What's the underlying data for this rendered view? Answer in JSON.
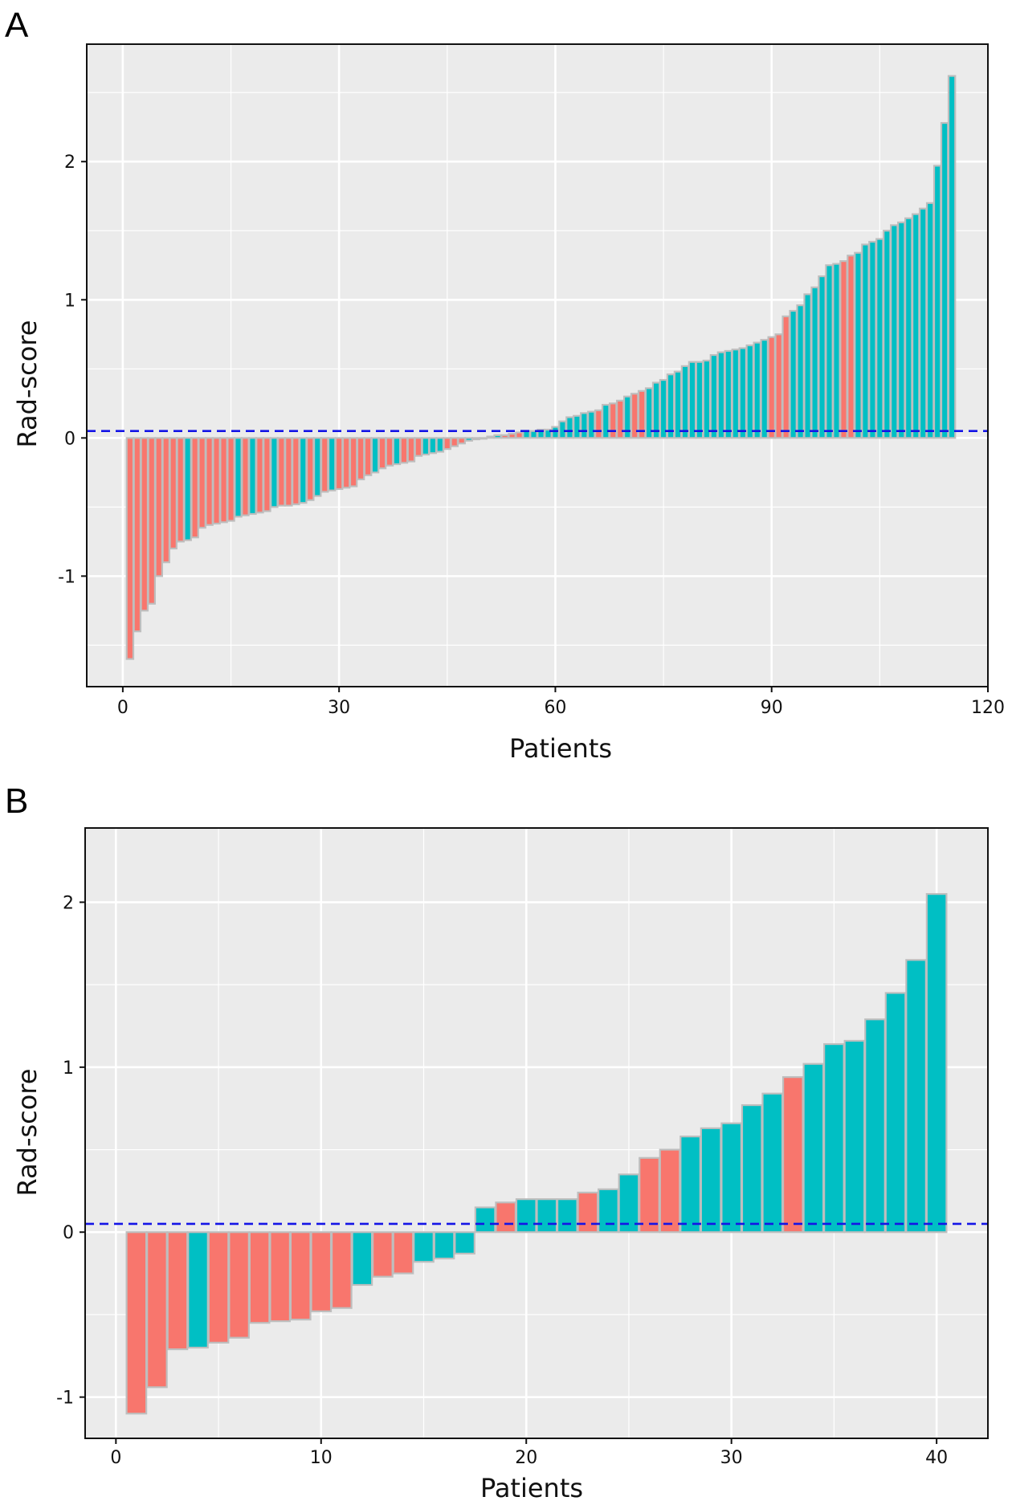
{
  "colors": {
    "panel_bg": "#EBEBEB",
    "grid": "#FFFFFF",
    "red": "#F8766D",
    "teal": "#00BFC4",
    "bar_border": "#BEBEBE",
    "cutoff_line": "#1414E6"
  },
  "chart_data": [
    {
      "type": "bar",
      "panel_label": "A",
      "xlabel": "Patients",
      "ylabel": "Rad-score",
      "x_ticks": [
        "0",
        "30",
        "60",
        "90",
        "120"
      ],
      "y_ticks": [
        "-1",
        "0",
        "1",
        "2"
      ],
      "xlim": [
        -5,
        120
      ],
      "ylim": [
        -1.8,
        2.85
      ],
      "cutoff": 0.05,
      "grid": true,
      "legend": "none",
      "values": [
        -1.6,
        -1.4,
        -1.25,
        -1.2,
        -1.0,
        -0.9,
        -0.8,
        -0.75,
        -0.74,
        -0.72,
        -0.65,
        -0.63,
        -0.62,
        -0.61,
        -0.6,
        -0.57,
        -0.56,
        -0.55,
        -0.54,
        -0.53,
        -0.5,
        -0.49,
        -0.49,
        -0.48,
        -0.47,
        -0.45,
        -0.42,
        -0.39,
        -0.38,
        -0.37,
        -0.36,
        -0.35,
        -0.3,
        -0.27,
        -0.25,
        -0.22,
        -0.2,
        -0.19,
        -0.18,
        -0.17,
        -0.13,
        -0.12,
        -0.11,
        -0.1,
        -0.08,
        -0.06,
        -0.04,
        -0.02,
        -0.01,
        0.0,
        0.01,
        0.02,
        0.02,
        0.03,
        0.04,
        0.05,
        0.05,
        0.06,
        0.06,
        0.08,
        0.12,
        0.15,
        0.16,
        0.18,
        0.19,
        0.2,
        0.24,
        0.25,
        0.27,
        0.3,
        0.32,
        0.34,
        0.36,
        0.4,
        0.42,
        0.46,
        0.48,
        0.52,
        0.55,
        0.55,
        0.56,
        0.6,
        0.62,
        0.63,
        0.64,
        0.65,
        0.67,
        0.69,
        0.71,
        0.73,
        0.75,
        0.88,
        0.92,
        0.96,
        1.04,
        1.09,
        1.17,
        1.25,
        1.26,
        1.28,
        1.32,
        1.34,
        1.4,
        1.42,
        1.44,
        1.5,
        1.54,
        1.56,
        1.59,
        1.62,
        1.66,
        1.7,
        1.97,
        2.28,
        2.62
      ],
      "groups": [
        "r",
        "r",
        "r",
        "r",
        "r",
        "r",
        "r",
        "r",
        "t",
        "r",
        "r",
        "r",
        "r",
        "r",
        "r",
        "t",
        "r",
        "t",
        "r",
        "r",
        "t",
        "r",
        "r",
        "r",
        "t",
        "r",
        "t",
        "r",
        "t",
        "r",
        "r",
        "r",
        "r",
        "r",
        "t",
        "r",
        "r",
        "t",
        "r",
        "r",
        "r",
        "t",
        "t",
        "t",
        "r",
        "r",
        "r",
        "t",
        "t",
        "t",
        "t",
        "t",
        "r",
        "r",
        "r",
        "t",
        "t",
        "t",
        "t",
        "t",
        "t",
        "t",
        "t",
        "t",
        "t",
        "r",
        "t",
        "r",
        "r",
        "t",
        "r",
        "r",
        "t",
        "t",
        "t",
        "t",
        "t",
        "t",
        "t",
        "t",
        "t",
        "t",
        "t",
        "t",
        "t",
        "t",
        "t",
        "t",
        "t",
        "r",
        "r",
        "r",
        "t",
        "t",
        "t",
        "t",
        "t",
        "t",
        "t",
        "r",
        "r",
        "t",
        "t",
        "t",
        "t",
        "t",
        "t",
        "t",
        "t",
        "t",
        "t",
        "t",
        "t",
        "t",
        "t"
      ]
    },
    {
      "type": "bar",
      "panel_label": "B",
      "xlabel": "Patients",
      "ylabel": "Rad-score",
      "x_ticks": [
        "0",
        "10",
        "20",
        "30",
        "40"
      ],
      "y_ticks": [
        "-1",
        "0",
        "1",
        "2"
      ],
      "xlim": [
        -1.5,
        42.5
      ],
      "ylim": [
        -1.25,
        2.45
      ],
      "cutoff": 0.05,
      "grid": true,
      "legend": "none",
      "values": [
        -1.1,
        -0.94,
        -0.71,
        -0.7,
        -0.67,
        -0.64,
        -0.55,
        -0.54,
        -0.53,
        -0.48,
        -0.46,
        -0.32,
        -0.27,
        -0.25,
        -0.18,
        -0.16,
        -0.13,
        0.15,
        0.18,
        0.2,
        0.2,
        0.2,
        0.24,
        0.26,
        0.35,
        0.45,
        0.5,
        0.58,
        0.63,
        0.66,
        0.77,
        0.84,
        0.94,
        1.02,
        1.14,
        1.16,
        1.29,
        1.45,
        1.65,
        2.05
      ],
      "groups": [
        "r",
        "r",
        "r",
        "t",
        "r",
        "r",
        "r",
        "r",
        "r",
        "r",
        "r",
        "t",
        "r",
        "r",
        "t",
        "t",
        "t",
        "t",
        "r",
        "t",
        "t",
        "t",
        "r",
        "t",
        "t",
        "r",
        "r",
        "t",
        "t",
        "t",
        "t",
        "t",
        "r",
        "t",
        "t",
        "t",
        "t",
        "t",
        "t",
        "t"
      ]
    }
  ]
}
